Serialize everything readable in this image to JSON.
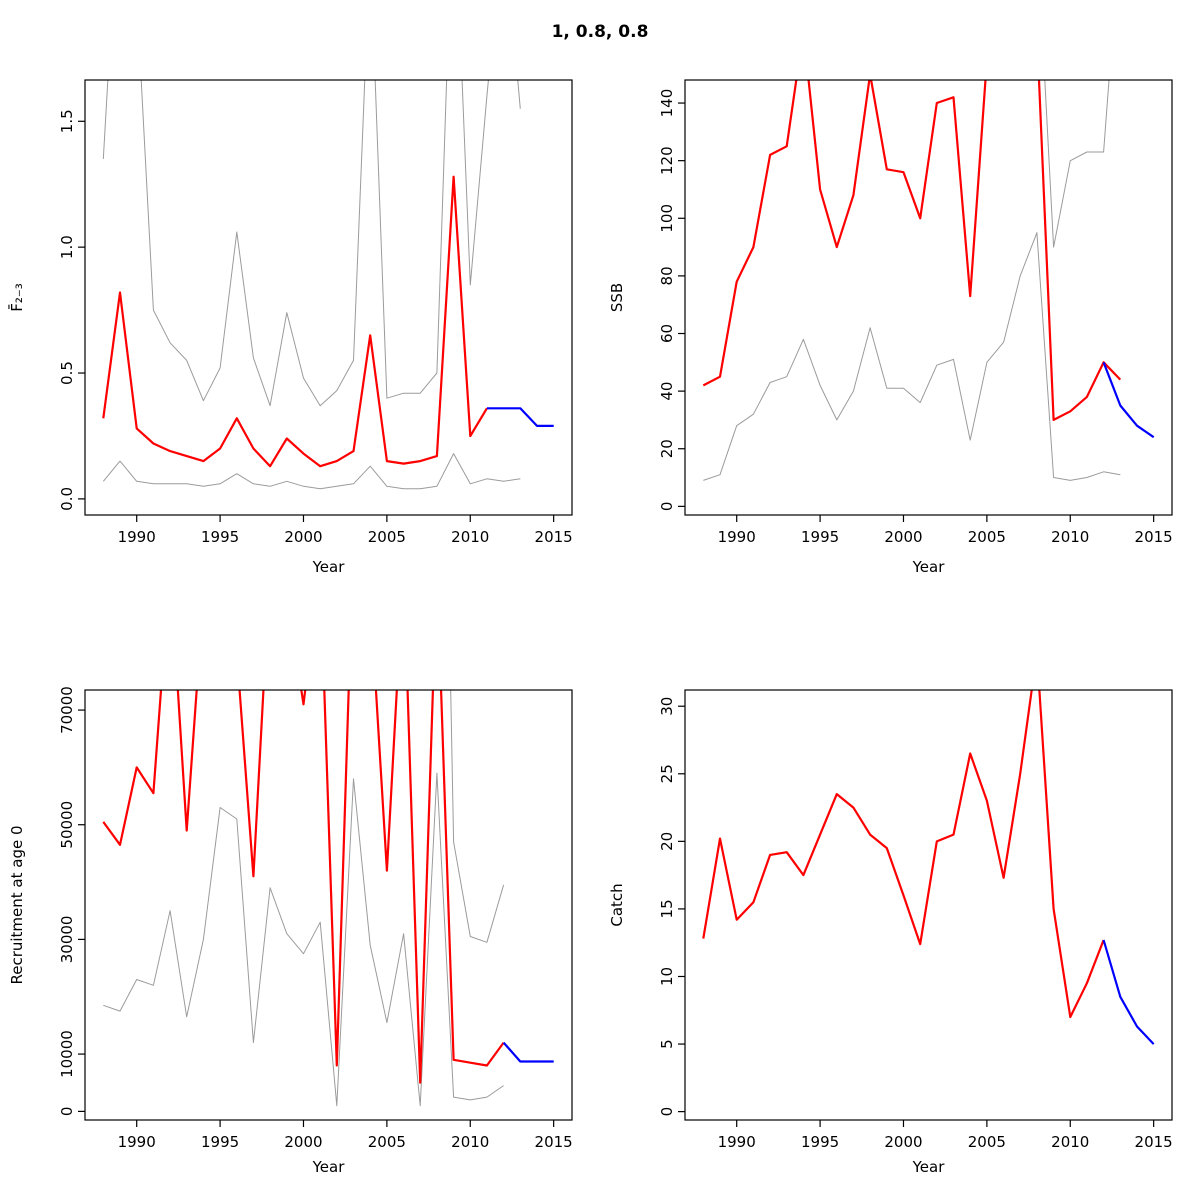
{
  "title": "1, 0.8, 0.8",
  "colors": {
    "estimate": "#FF0000",
    "projection": "#0000FF",
    "ci": "#9B9B9B",
    "axis": "#000000"
  },
  "chart_data": [
    {
      "type": "line",
      "title": "",
      "xlabel": "Year",
      "ylabel": "F̄₂₋₃",
      "grid": false,
      "legend": "none",
      "xlim": [
        1986.9,
        2016.1
      ],
      "ylim": [
        -0.064,
        1.664
      ],
      "xticks": [
        1990,
        1995,
        2000,
        2005,
        2010,
        2015
      ],
      "yticks": [
        0.0,
        0.5,
        1.0,
        1.5
      ],
      "ytick_labels": [
        "0.0",
        "0.5",
        "1.0",
        "1.5"
      ],
      "series": [
        {
          "name": "upper-ci",
          "color": "#9B9B9B",
          "width": 1,
          "x": [
            1988,
            1989,
            1990,
            1991,
            1992,
            1993,
            1994,
            1995,
            1996,
            1997,
            1998,
            1999,
            2000,
            2001,
            2002,
            2003,
            2004,
            2005,
            2006,
            2007,
            2008,
            2009,
            2010,
            2011,
            2012,
            2013
          ],
          "y": [
            1.35,
            2.5,
            2.0,
            0.75,
            0.62,
            0.55,
            0.39,
            0.52,
            1.06,
            0.56,
            0.37,
            0.74,
            0.48,
            0.37,
            0.43,
            0.55,
            2.2,
            0.4,
            0.42,
            0.42,
            0.5,
            2.5,
            0.85,
            1.6,
            2.3,
            1.55
          ]
        },
        {
          "name": "lower-ci",
          "color": "#9B9B9B",
          "width": 1,
          "x": [
            1988,
            1989,
            1990,
            1991,
            1992,
            1993,
            1994,
            1995,
            1996,
            1997,
            1998,
            1999,
            2000,
            2001,
            2002,
            2003,
            2004,
            2005,
            2006,
            2007,
            2008,
            2009,
            2010,
            2011,
            2012,
            2013
          ],
          "y": [
            0.07,
            0.15,
            0.07,
            0.06,
            0.06,
            0.06,
            0.05,
            0.06,
            0.1,
            0.06,
            0.05,
            0.07,
            0.05,
            0.04,
            0.05,
            0.06,
            0.13,
            0.05,
            0.04,
            0.04,
            0.05,
            0.18,
            0.06,
            0.08,
            0.07,
            0.08
          ]
        },
        {
          "name": "estimate",
          "color": "#FF0000",
          "width": 2.2,
          "x": [
            1988,
            1989,
            1990,
            1991,
            1992,
            1993,
            1994,
            1995,
            1996,
            1997,
            1998,
            1999,
            2000,
            2001,
            2002,
            2003,
            2004,
            2005,
            2006,
            2007,
            2008,
            2009,
            2010,
            2011
          ],
          "y": [
            0.32,
            0.82,
            0.28,
            0.22,
            0.19,
            0.17,
            0.15,
            0.2,
            0.32,
            0.2,
            0.13,
            0.24,
            0.18,
            0.13,
            0.15,
            0.19,
            0.65,
            0.15,
            0.14,
            0.15,
            0.17,
            1.28,
            0.25,
            0.36
          ]
        },
        {
          "name": "projection",
          "color": "#0000FF",
          "width": 2.2,
          "x": [
            2011,
            2012,
            2013,
            2014,
            2015
          ],
          "y": [
            0.36,
            0.36,
            0.36,
            0.29,
            0.29
          ]
        }
      ]
    },
    {
      "type": "line",
      "title": "",
      "xlabel": "Year",
      "ylabel": "SSB",
      "grid": false,
      "legend": "none",
      "xlim": [
        1986.9,
        2016.1
      ],
      "ylim": [
        -3,
        148
      ],
      "xticks": [
        1990,
        1995,
        2000,
        2005,
        2010,
        2015
      ],
      "yticks": [
        0,
        20,
        40,
        60,
        80,
        100,
        120,
        140
      ],
      "ytick_labels": [
        "0",
        "20",
        "40",
        "60",
        "80",
        "100",
        "120",
        "140"
      ],
      "series": [
        {
          "name": "upper-ci",
          "color": "#9B9B9B",
          "width": 1,
          "x": [
            1988,
            1989,
            1990,
            1991,
            1992,
            1993,
            1994,
            1995,
            1996,
            1997,
            1998,
            1999,
            2000,
            2001,
            2002,
            2003,
            2004,
            2005,
            2006,
            2007,
            2008,
            2009,
            2010,
            2011,
            2012,
            2013
          ],
          "y": [
            200,
            200,
            200,
            200,
            200,
            200,
            200,
            200,
            200,
            200,
            200,
            200,
            200,
            200,
            200,
            200,
            200,
            200,
            200,
            200,
            200,
            90,
            120,
            123,
            123,
            200
          ]
        },
        {
          "name": "lower-ci",
          "color": "#9B9B9B",
          "width": 1,
          "x": [
            1988,
            1989,
            1990,
            1991,
            1992,
            1993,
            1994,
            1995,
            1996,
            1997,
            1998,
            1999,
            2000,
            2001,
            2002,
            2003,
            2004,
            2005,
            2006,
            2007,
            2008,
            2009,
            2010,
            2011,
            2012,
            2013
          ],
          "y": [
            9,
            11,
            28,
            32,
            43,
            45,
            58,
            42,
            30,
            40,
            62,
            41,
            41,
            36,
            49,
            51,
            23,
            50,
            57,
            80,
            95,
            10,
            9,
            10,
            12,
            11
          ]
        },
        {
          "name": "estimate",
          "color": "#FF0000",
          "width": 2.2,
          "x": [
            1988,
            1989,
            1990,
            1991,
            1992,
            1993,
            1994,
            1995,
            1996,
            1997,
            1998,
            1999,
            2000,
            2001,
            2002,
            2003,
            2004,
            2005,
            2006,
            2007,
            2008,
            2009,
            2010,
            2011,
            2012,
            2013
          ],
          "y": [
            42,
            45,
            78,
            90,
            122,
            125,
            165,
            110,
            90,
            108,
            150,
            117,
            116,
            100,
            140,
            142,
            73,
            155,
            165,
            170,
            165,
            30,
            33,
            38,
            50,
            44
          ]
        },
        {
          "name": "projection",
          "color": "#0000FF",
          "width": 2.2,
          "x": [
            2012,
            2013,
            2014,
            2015
          ],
          "y": [
            50,
            35,
            28,
            24
          ]
        }
      ]
    },
    {
      "type": "line",
      "title": "",
      "xlabel": "Year",
      "ylabel": "Recruitment at age 0",
      "grid": false,
      "legend": "none",
      "xlim": [
        1986.9,
        2016.1
      ],
      "ylim": [
        -1500,
        73500
      ],
      "xticks": [
        1990,
        1995,
        2000,
        2005,
        2010,
        2015
      ],
      "yticks": [
        0,
        10000,
        30000,
        50000,
        70000
      ],
      "ytick_labels": [
        "0",
        "10000",
        "30000",
        "50000",
        "70000"
      ],
      "series": [
        {
          "name": "upper-ci",
          "color": "#9B9B9B",
          "width": 1,
          "x": [
            1988,
            1989,
            1990,
            1991,
            1992,
            1993,
            1994,
            1995,
            1996,
            1997,
            1998,
            1999,
            2000,
            2001,
            2002,
            2003,
            2004,
            2005,
            2006,
            2007,
            2008,
            2009,
            2010,
            2011,
            2012
          ],
          "y": [
            200000,
            200000,
            200000,
            200000,
            200000,
            200000,
            200000,
            200000,
            200000,
            200000,
            200000,
            200000,
            200000,
            200000,
            200000,
            200000,
            200000,
            200000,
            200000,
            200000,
            200000,
            47000,
            30500,
            29500,
            39500
          ]
        },
        {
          "name": "lower-ci",
          "color": "#9B9B9B",
          "width": 1,
          "x": [
            1988,
            1989,
            1990,
            1991,
            1992,
            1993,
            1994,
            1995,
            1996,
            1997,
            1998,
            1999,
            2000,
            2001,
            2002,
            2003,
            2004,
            2005,
            2006,
            2007,
            2008,
            2009,
            2010,
            2011,
            2012
          ],
          "y": [
            18500,
            17500,
            23000,
            22000,
            35000,
            16500,
            30000,
            53000,
            51000,
            12000,
            39000,
            31000,
            27500,
            33000,
            1000,
            58000,
            29000,
            15500,
            31000,
            1000,
            59000,
            2500,
            2000,
            2500,
            4500
          ]
        },
        {
          "name": "estimate",
          "color": "#FF0000",
          "width": 2.2,
          "x": [
            1988,
            1989,
            1990,
            1991,
            1992,
            1993,
            1994,
            1995,
            1996,
            1997,
            1998,
            1999,
            2000,
            2001,
            2002,
            2003,
            2004,
            2005,
            2006,
            2007,
            2008,
            2009,
            2010,
            2011,
            2012
          ],
          "y": [
            50500,
            46500,
            60000,
            55500,
            95000,
            49000,
            90000,
            100000,
            80000,
            41000,
            95000,
            90000,
            71000,
            95000,
            8000,
            100000,
            90000,
            42000,
            95000,
            5000,
            95000,
            9000,
            8500,
            8000,
            12000
          ]
        },
        {
          "name": "projection",
          "color": "#0000FF",
          "width": 2.2,
          "x": [
            2012,
            2013,
            2014,
            2015
          ],
          "y": [
            12000,
            8700,
            8700,
            8700
          ]
        }
      ]
    },
    {
      "type": "line",
      "title": "",
      "xlabel": "Year",
      "ylabel": "Catch",
      "grid": false,
      "legend": "none",
      "xlim": [
        1986.9,
        2016.1
      ],
      "ylim": [
        -0.62,
        31.2
      ],
      "xticks": [
        1990,
        1995,
        2000,
        2005,
        2010,
        2015
      ],
      "yticks": [
        0,
        5,
        10,
        15,
        20,
        25,
        30
      ],
      "ytick_labels": [
        "0",
        "5",
        "10",
        "15",
        "20",
        "25",
        "30"
      ],
      "series": [
        {
          "name": "estimate",
          "color": "#FF0000",
          "width": 2.2,
          "x": [
            1988,
            1989,
            1990,
            1991,
            1992,
            1993,
            1994,
            1995,
            1996,
            1997,
            1998,
            1999,
            2000,
            2001,
            2002,
            2003,
            2004,
            2005,
            2006,
            2007,
            2008,
            2009,
            2010,
            2011,
            2012
          ],
          "y": [
            12.8,
            20.2,
            14.2,
            15.5,
            19.0,
            19.2,
            17.5,
            20.5,
            23.5,
            22.5,
            20.5,
            19.5,
            16.0,
            12.4,
            20.0,
            20.5,
            26.5,
            23.0,
            17.3,
            25.0,
            34.0,
            15.0,
            7.0,
            9.5,
            12.7
          ]
        },
        {
          "name": "projection",
          "color": "#0000FF",
          "width": 2.2,
          "x": [
            2012,
            2013,
            2014,
            2015
          ],
          "y": [
            12.7,
            8.5,
            6.3,
            5.0
          ]
        }
      ]
    }
  ]
}
